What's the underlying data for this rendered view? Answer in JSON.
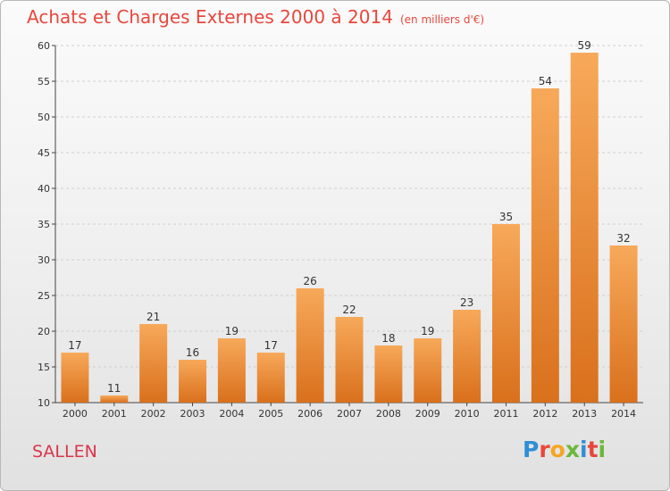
{
  "header": {
    "title": "Achats et Charges Externes 2000 à 2014",
    "subtitle": "(en milliers d'€)"
  },
  "footer": {
    "commune": "SALLEN",
    "logo_letters": [
      "P",
      "r",
      "o",
      "x",
      "i",
      "t",
      "i"
    ],
    "logo_colors": [
      "#2f8fd6",
      "#e8473c",
      "#f5a623",
      "#6bb83a",
      "#2f8fd6",
      "#e8473c",
      "#6bb83a"
    ]
  },
  "chart_data": {
    "type": "bar",
    "title": "Achats et Charges Externes 2000 à 2014",
    "subtitle": "(en milliers d'€)",
    "categories": [
      "2000",
      "2001",
      "2002",
      "2003",
      "2004",
      "2005",
      "2006",
      "2007",
      "2008",
      "2009",
      "2010",
      "2011",
      "2012",
      "2013",
      "2014"
    ],
    "values": [
      17,
      11,
      21,
      16,
      19,
      17,
      26,
      22,
      18,
      19,
      23,
      35,
      54,
      59,
      32
    ],
    "ylim": [
      10,
      60
    ],
    "yticks": [
      10,
      15,
      20,
      25,
      30,
      35,
      40,
      45,
      50,
      55,
      60
    ],
    "grid": true,
    "legend": "none",
    "colors": {
      "bar_light": "#f7a95a",
      "bar_dark": "#d9701c",
      "grid": "#cfcfcf",
      "axis": "#444444"
    }
  }
}
